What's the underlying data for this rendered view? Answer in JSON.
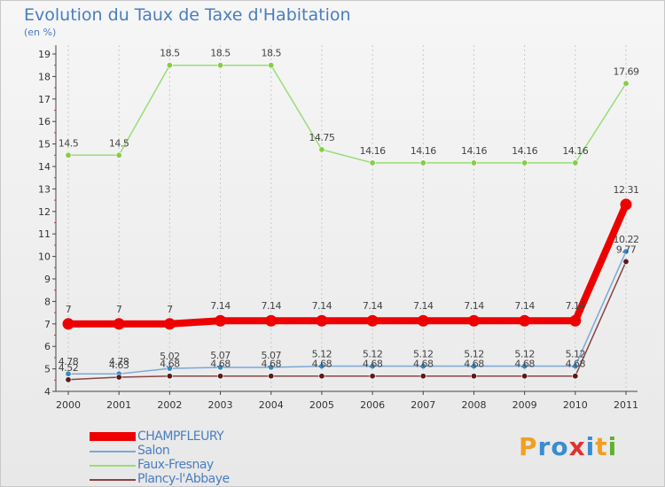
{
  "title": "Evolution du Taux de Taxe d'Habitation",
  "unit": "(en %)",
  "logo": {
    "letters": [
      "P",
      "r",
      "o",
      "x",
      "i",
      "t",
      "i"
    ],
    "colors": [
      "#f0a020",
      "#3a8cd0",
      "#3a8cd0",
      "#e03030",
      "#3a8cd0",
      "#f0a020",
      "#60b030"
    ]
  },
  "chart_data": {
    "type": "line",
    "title": "Evolution du Taux de Taxe d'Habitation",
    "ylabel": "(en %)",
    "x": [
      "2000",
      "2001",
      "2002",
      "2003",
      "2004",
      "2005",
      "2006",
      "2007",
      "2008",
      "2009",
      "2010",
      "2011"
    ],
    "ylim": [
      4,
      19
    ],
    "yticks": [
      "4",
      "5",
      "6",
      "7",
      "8",
      "9",
      "10",
      "11",
      "12",
      "13",
      "14",
      "15",
      "16",
      "17",
      "18",
      "19"
    ],
    "grid": "vertical dashed",
    "series": [
      {
        "name": "Faux-Fresnay",
        "color": "#99dd77",
        "marker": "#88cc44",
        "labels": true,
        "values": [
          14.5,
          14.5,
          18.5,
          18.5,
          18.5,
          14.75,
          14.16,
          14.16,
          14.16,
          14.16,
          14.16,
          17.69
        ],
        "value_labels": [
          "14.5",
          "14.5",
          "18.5",
          "18.5",
          "18.5",
          "14.75",
          "14.16",
          "14.16",
          "14.16",
          "14.16",
          "14.16",
          "17.69"
        ]
      },
      {
        "name": "Salon",
        "color": "#7aa8d8",
        "marker": "#3a88c8",
        "labels": true,
        "values": [
          4.78,
          4.78,
          5.02,
          5.07,
          5.07,
          5.12,
          5.12,
          5.12,
          5.12,
          5.12,
          5.12,
          10.22
        ],
        "value_labels": [
          "4.78",
          "4.78",
          "5.02",
          "5.07",
          "5.07",
          "5.12",
          "5.12",
          "5.12",
          "5.12",
          "5.12",
          "5.12",
          "10.22"
        ]
      },
      {
        "name": "Plancy-l'Abbaye",
        "color": "#884444",
        "marker": "#5a1a1a",
        "labels": true,
        "values": [
          4.52,
          4.63,
          4.68,
          4.68,
          4.68,
          4.68,
          4.68,
          4.68,
          4.68,
          4.68,
          4.68,
          9.77
        ],
        "value_labels": [
          "4.52",
          "4.63",
          "4.68",
          "4.68",
          "4.68",
          "4.68",
          "4.68",
          "4.68",
          "4.68",
          "4.68",
          "4.68",
          "9.77"
        ]
      },
      {
        "name": "CHAMPFLEURY",
        "color": "#ee0000",
        "marker": "#ee0000",
        "labels": true,
        "thick": true,
        "values": [
          7,
          7,
          7,
          7.14,
          7.14,
          7.14,
          7.14,
          7.14,
          7.14,
          7.14,
          7.14,
          12.31
        ],
        "value_labels": [
          "7",
          "7",
          "7",
          "7.14",
          "7.14",
          "7.14",
          "7.14",
          "7.14",
          "7.14",
          "7.14",
          "7.14",
          "12.31"
        ]
      }
    ],
    "legend": [
      {
        "name": "CHAMPFLEURY",
        "color": "#ee0000"
      },
      {
        "name": "Salon",
        "color": "#7aa8d8"
      },
      {
        "name": "Faux-Fresnay",
        "color": "#99dd77"
      },
      {
        "name": "Plancy-l'Abbaye",
        "color": "#884444"
      }
    ]
  }
}
